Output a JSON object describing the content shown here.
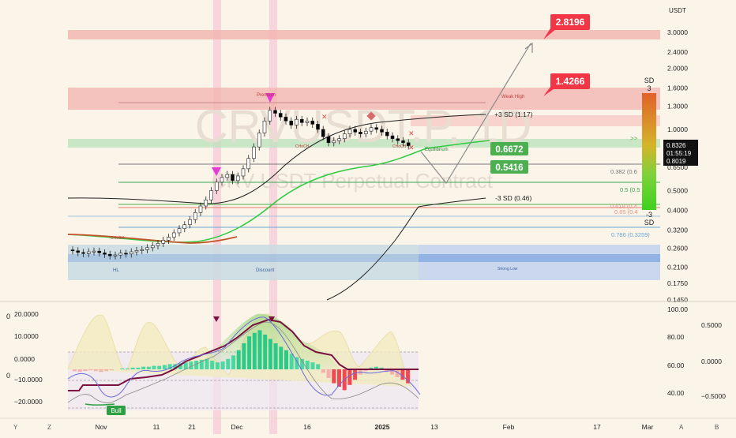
{
  "symbol_watermark": "CRVUSDT.P, 1D",
  "subtitle_watermark": "CRV USDT Perpetual Contract",
  "currency": "USDT",
  "price_axis": {
    "ticks": [
      "3.0000",
      "2.4000",
      "2.0000",
      "1.6000",
      "1.3000",
      "1.0000",
      "0.6500",
      "0.5000",
      "0.4000",
      "0.3200",
      "0.2600",
      "0.2100",
      "0.1750",
      "0.1450"
    ],
    "last_price": "0.8326",
    "countdown": "01:55:19",
    "reference_price": "0.8019"
  },
  "time_axis": {
    "ticks": [
      "Nov",
      "11",
      "21",
      "Dec",
      "16",
      "2025",
      "13",
      "Feb",
      "17",
      "Mar"
    ],
    "left_buttons": [
      "Y",
      "Z"
    ],
    "right_buttons": [
      "A",
      "B"
    ]
  },
  "targets": [
    {
      "label": "2.8196",
      "color": "#f23645"
    },
    {
      "label": "1.4266",
      "color": "#f23645"
    },
    {
      "label": "0.6672",
      "color": "#4caf50"
    },
    {
      "label": "0.5416",
      "color": "#4caf50"
    }
  ],
  "levels": {
    "plus3": "+3 SD (1.17)",
    "minus3": "-3 SD (0.46)",
    "fib382": "0.382 (0.6",
    "fib5": "0.5 (0.5",
    "fib618": "0.618 (0.4",
    "fib65": "0.65 (0.4",
    "fib786": "0.786 (0.3259)"
  },
  "smc": {
    "premium": "Premium",
    "weak_high": "Weak High",
    "discount": "Discount",
    "hl": "HL",
    "strong_low": "Strong Low",
    "equilibrium": "Equilibrium",
    "choch": "CHoCH"
  },
  "sd_gauge": {
    "top": "SD",
    "top_num": "3",
    "bottom_num": "-3",
    "bottom": "SD"
  },
  "oscillator": {
    "left_ticks": [
      "20.0000",
      "10.0000",
      "0.0000",
      "−10.0000",
      "−20.0000"
    ],
    "mid_ticks": [
      "100.00",
      "80.00",
      "60.00",
      "40.00"
    ],
    "right_ticks": [
      "0.5000",
      "0.0000",
      "−0.5000"
    ],
    "bull_label": "Bull"
  },
  "left_axis_marks": [
    "0",
    "0"
  ],
  "colors": {
    "bull_candle": "#ffffff",
    "bear_candle": "#000000",
    "supply": "#f4a9a5",
    "demand": "#6f9be0",
    "accent_green": "#4caf50",
    "accent_red": "#f23645"
  },
  "chart_data": {
    "type": "candlestick",
    "scale": "log",
    "ylim": [
      0.145,
      3.0
    ],
    "x_ticks": [
      "Nov",
      "11",
      "21",
      "Dec",
      "16",
      "2025",
      "13",
      "Feb",
      "17",
      "Mar"
    ],
    "candles_close": [
      0.253,
      0.248,
      0.245,
      0.25,
      0.252,
      0.247,
      0.243,
      0.239,
      0.241,
      0.246,
      0.244,
      0.25,
      0.254,
      0.256,
      0.262,
      0.268,
      0.275,
      0.285,
      0.295,
      0.31,
      0.325,
      0.34,
      0.36,
      0.39,
      0.42,
      0.45,
      0.5,
      0.55,
      0.58,
      0.6,
      0.56,
      0.59,
      0.64,
      0.72,
      0.82,
      0.96,
      1.1,
      1.24,
      1.2,
      1.15,
      1.1,
      1.05,
      1.12,
      1.08,
      1.1,
      1.06,
      1.0,
      0.92,
      0.86,
      0.88,
      0.9,
      0.95,
      1.0,
      0.97,
      0.95,
      0.98,
      1.02,
      1.0,
      0.97,
      0.93,
      0.9,
      0.88,
      0.86,
      0.83
    ],
    "price_lines": {
      "plus3sd": 1.17,
      "minus3sd": 0.46,
      "fib_0786": 0.3259
    },
    "targets": [
      2.8196,
      1.4266,
      0.6672,
      0.5416
    ]
  }
}
